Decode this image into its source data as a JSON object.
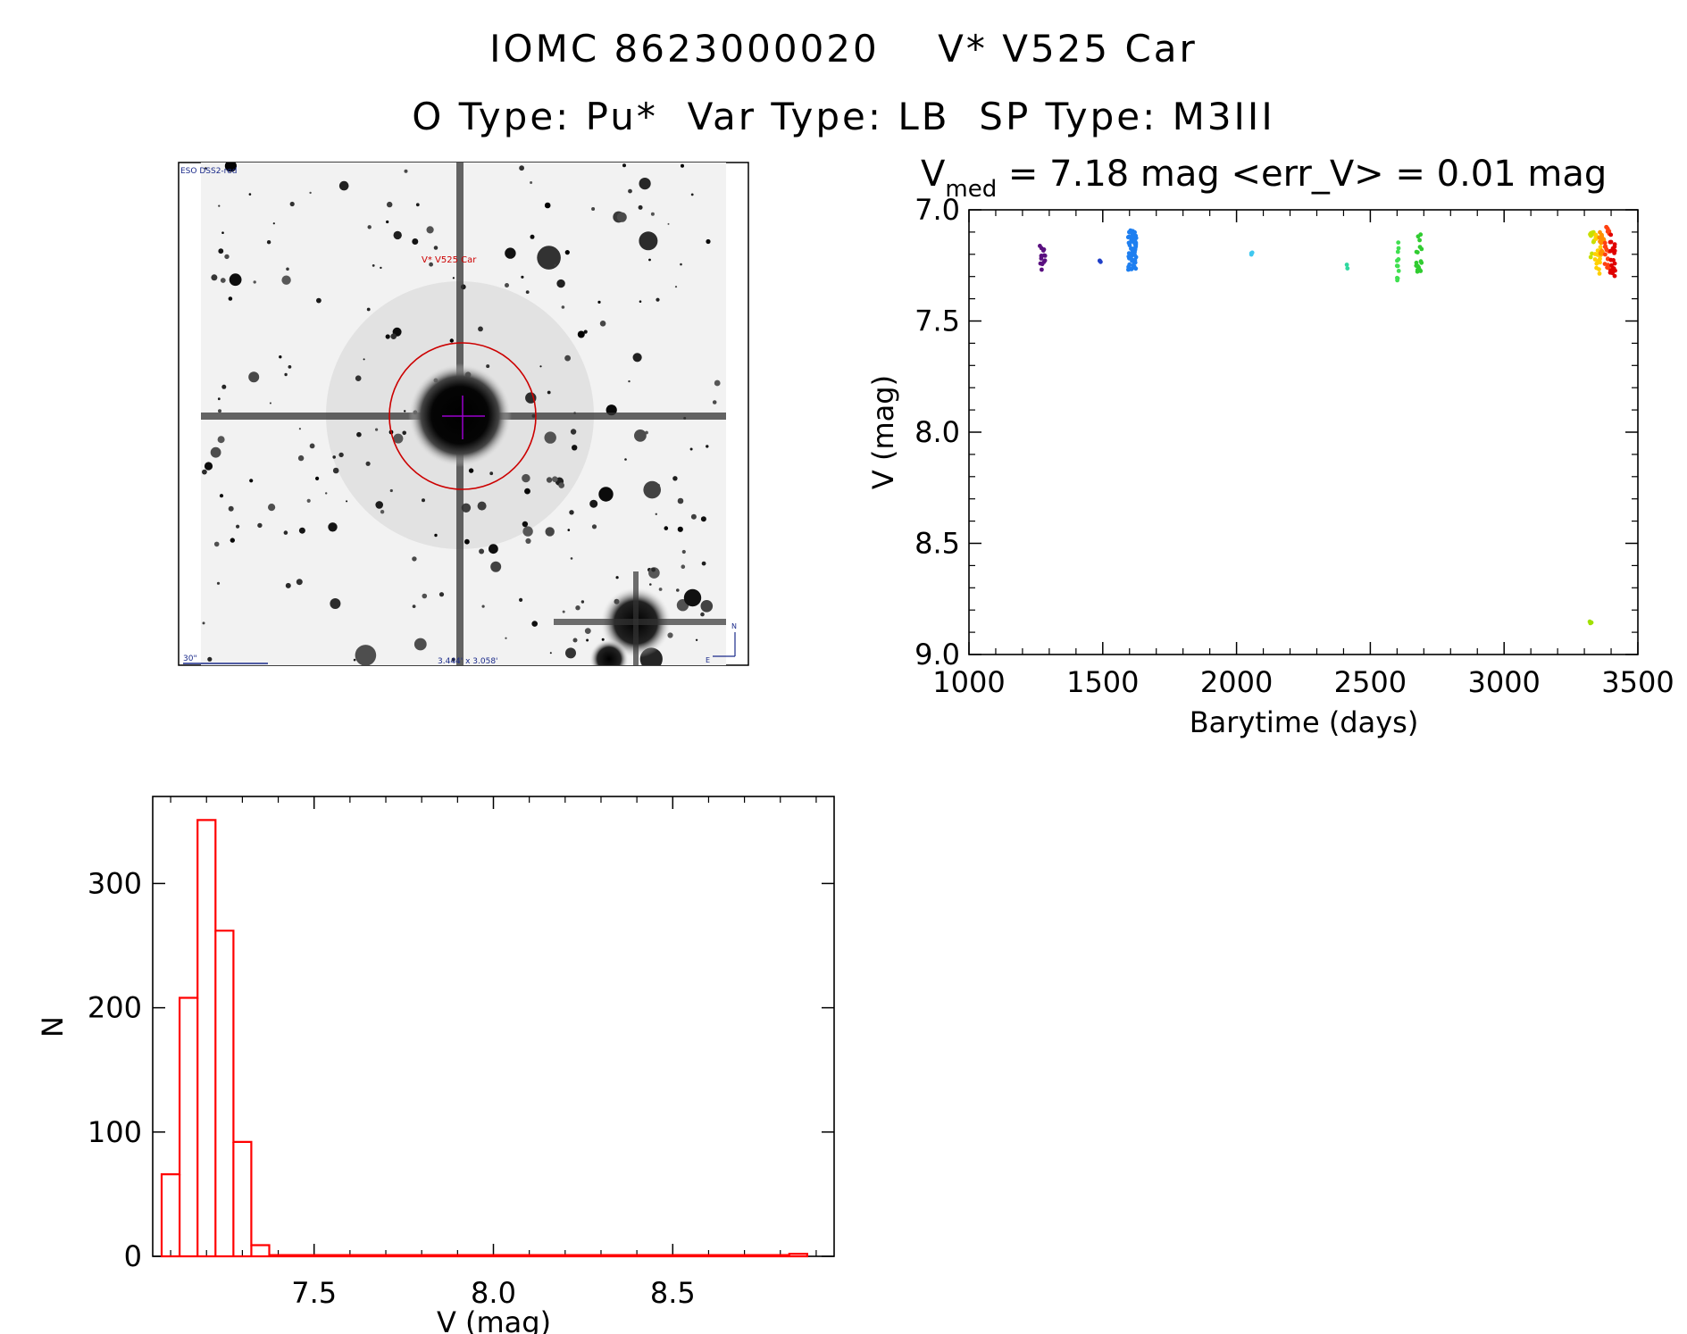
{
  "header": {
    "title_line1": "IOMC 8623000020    V* V525 Car",
    "title_line2": "O Type: Pu*  Var Type: LB  SP Type: M3III"
  },
  "finder_image": {
    "survey_label": "ESO DSS2-red",
    "target_label": "V* V525 Car",
    "scale_label": "30\"",
    "fov_label": "3.444' x 3.058'",
    "north_label": "N",
    "east_label": "E",
    "marker_color": "#cc0000",
    "crosshair_color": "#9900cc"
  },
  "light_curve": {
    "stats_prefix": "V",
    "stats_subscript": "med",
    "stats_text": " = 7.18 mag <err_V> = 0.01 mag"
  },
  "chart_data": [
    {
      "type": "scatter",
      "xlabel": "Barytime (days)",
      "ylabel": "V (mag)",
      "xlim": [
        1000,
        3500
      ],
      "ylim": [
        9.0,
        7.0
      ],
      "y_inverted": true,
      "xticks": [
        "1000",
        "1500",
        "2000",
        "2500",
        "3000",
        "3500"
      ],
      "yticks": [
        "7.0",
        "7.5",
        "8.0",
        "8.5",
        "9.0"
      ],
      "clusters": [
        {
          "x": [
            1265,
            1285
          ],
          "y": [
            7.16,
            7.27
          ],
          "n": 14,
          "color": "#5a1080"
        },
        {
          "x": [
            1488,
            1492
          ],
          "y": [
            7.22,
            7.24
          ],
          "n": 3,
          "color": "#2040c8"
        },
        {
          "x": [
            1595,
            1625
          ],
          "y": [
            7.09,
            7.27
          ],
          "n": 70,
          "color": "#1e7ff0"
        },
        {
          "x": [
            2055,
            2062
          ],
          "y": [
            7.19,
            7.22
          ],
          "n": 3,
          "color": "#40c8f0"
        },
        {
          "x": [
            2412,
            2416
          ],
          "y": [
            7.24,
            7.27
          ],
          "n": 2,
          "color": "#30d8a0"
        },
        {
          "x": [
            2598,
            2608
          ],
          "y": [
            7.13,
            7.32
          ],
          "n": 12,
          "color": "#40e050"
        },
        {
          "x": [
            2670,
            2695
          ],
          "y": [
            7.09,
            7.28
          ],
          "n": 18,
          "color": "#30cc30"
        },
        {
          "x": [
            3320,
            3345
          ],
          "y": [
            7.1,
            7.22
          ],
          "n": 12,
          "color": "#c8e000"
        },
        {
          "x": [
            3340,
            3360
          ],
          "y": [
            7.1,
            7.3
          ],
          "n": 18,
          "color": "#ffd000"
        },
        {
          "x": [
            3355,
            3375
          ],
          "y": [
            7.1,
            7.25
          ],
          "n": 15,
          "color": "#ff9000"
        },
        {
          "x": [
            3375,
            3395
          ],
          "y": [
            7.07,
            7.27
          ],
          "n": 20,
          "color": "#ff4010"
        },
        {
          "x": [
            3395,
            3415
          ],
          "y": [
            7.1,
            7.3
          ],
          "n": 22,
          "color": "#e00000"
        },
        {
          "x": [
            3320,
            3330
          ],
          "y": [
            8.84,
            8.88
          ],
          "n": 3,
          "color": "#a0e000"
        }
      ]
    },
    {
      "type": "bar",
      "style": "step-histogram",
      "xlabel": "V (mag)",
      "ylabel": "N",
      "xlim": [
        7.05,
        8.95
      ],
      "ylim": [
        0,
        370
      ],
      "xticks": [
        "7.5",
        "8.0",
        "8.5"
      ],
      "yticks": [
        "0",
        "100",
        "200",
        "300"
      ],
      "bin_edges": [
        7.075,
        7.125,
        7.175,
        7.225,
        7.275,
        7.325,
        7.375,
        8.825,
        8.875
      ],
      "counts": [
        66,
        208,
        351,
        262,
        92,
        9,
        1,
        2
      ],
      "color": "#ff0000"
    }
  ]
}
